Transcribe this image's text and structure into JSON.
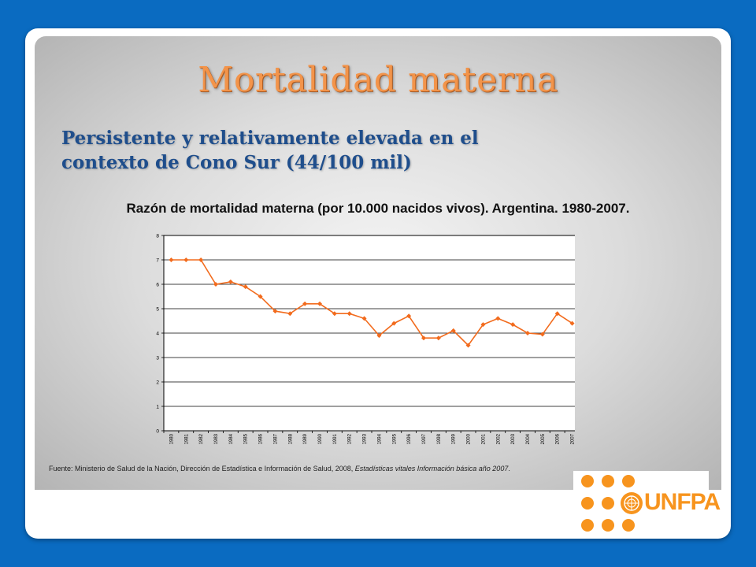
{
  "slide": {
    "title": "Mortalidad materna",
    "subtitle_line1": "Persistente y relativamente elevada en el",
    "subtitle_line2": "contexto de Cono Sur (44/100 mil)",
    "source_prefix": "Fuente: Ministerio de Salud de la Nación, Dirección de Estadística e Información de Salud, 2008, ",
    "source_italic": "Estadísticas vitales  Información básica año 2007",
    "source_suffix": "."
  },
  "logo": {
    "text": "UNFPA",
    "color": "#f7941e"
  },
  "colors": {
    "accent": "#f3944a",
    "subtitle": "#1f4e8c",
    "series": "#f26b1d",
    "background": "#0a6bc1"
  },
  "chart_data": {
    "type": "line",
    "title": "Razón de mortalidad materna (por 10.000 nacidos vivos). Argentina. 1980-2007.",
    "xlabel": "",
    "ylabel": "",
    "ylim": [
      0,
      8
    ],
    "yticks": [
      0,
      1,
      2,
      3,
      4,
      5,
      6,
      7,
      8
    ],
    "grid": true,
    "categories": [
      "1980",
      "1981",
      "1982",
      "1983",
      "1984",
      "1985",
      "1986",
      "1987",
      "1988",
      "1989",
      "1990",
      "1991",
      "1992",
      "1993",
      "1994",
      "1995",
      "1996",
      "1997",
      "1998",
      "1999",
      "2000",
      "2001",
      "2002",
      "2003",
      "2004",
      "2005",
      "2006",
      "2007"
    ],
    "series": [
      {
        "values": [
          7.0,
          7.0,
          7.0,
          6.0,
          6.1,
          5.9,
          5.5,
          4.9,
          4.8,
          5.2,
          5.2,
          4.8,
          4.8,
          4.6,
          3.9,
          4.4,
          4.7,
          3.8,
          3.8,
          4.1,
          3.5,
          4.35,
          4.6,
          4.35,
          4.0,
          3.95,
          4.8,
          4.4
        ]
      }
    ]
  }
}
